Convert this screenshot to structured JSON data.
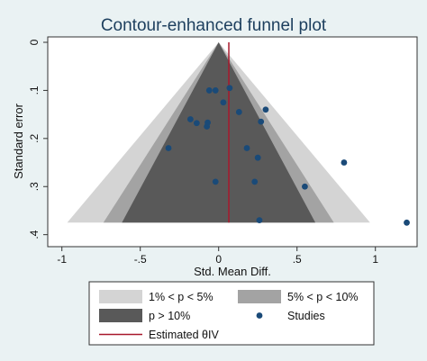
{
  "chart_data": {
    "type": "scatter",
    "title": "Contour-enhanced funnel plot",
    "xlabel": "Std. Mean Diff.",
    "ylabel": "Standard error",
    "xlim": [
      -1.05,
      1.22
    ],
    "ylim": [
      0,
      0.41
    ],
    "y_reversed": true,
    "x_ticks": [
      -1,
      -0.5,
      0,
      0.5,
      1
    ],
    "x_tick_labels": [
      "-1",
      "-.5",
      "0",
      ".5",
      "1"
    ],
    "y_ticks": [
      0,
      0.1,
      0.2,
      0.3,
      0.4
    ],
    "y_tick_labels": [
      "0",
      ".1",
      ".2",
      ".3",
      ".4"
    ],
    "pooled_estimate": 0.065,
    "se_max": 0.375,
    "contours": [
      {
        "name": "1% < p < 5%",
        "z": 2.576,
        "color": "#d4d4d4"
      },
      {
        "name": "5% < p < 10%",
        "z": 1.96,
        "color": "#a3a3a3"
      },
      {
        "name": "p > 10%",
        "z": 1.645,
        "color": "#595959"
      }
    ],
    "series": [
      {
        "name": "Studies",
        "color": "#1a4a78",
        "points": [
          {
            "x": 0.07,
            "y": 0.095
          },
          {
            "x": -0.06,
            "y": 0.1
          },
          {
            "x": -0.02,
            "y": 0.1
          },
          {
            "x": 0.3,
            "y": 0.14
          },
          {
            "x": 0.03,
            "y": 0.125
          },
          {
            "x": 0.13,
            "y": 0.145
          },
          {
            "x": 0.27,
            "y": 0.165
          },
          {
            "x": -0.18,
            "y": 0.16
          },
          {
            "x": -0.14,
            "y": 0.168
          },
          {
            "x": -0.07,
            "y": 0.167
          },
          {
            "x": -0.075,
            "y": 0.175
          },
          {
            "x": -0.32,
            "y": 0.22
          },
          {
            "x": 0.18,
            "y": 0.22
          },
          {
            "x": 0.25,
            "y": 0.24
          },
          {
            "x": 0.8,
            "y": 0.25
          },
          {
            "x": -0.02,
            "y": 0.29
          },
          {
            "x": 0.23,
            "y": 0.29
          },
          {
            "x": 0.55,
            "y": 0.3
          },
          {
            "x": 0.26,
            "y": 0.37
          },
          {
            "x": 1.2,
            "y": 0.375
          }
        ]
      }
    ],
    "estimate_line": {
      "name": "Estimated θIV",
      "color": "#a8182c"
    },
    "legend": {
      "position": "bottom",
      "items": [
        {
          "label": "1% < p < 5%",
          "kind": "area",
          "color": "#d4d4d4"
        },
        {
          "label": "5% < p < 10%",
          "kind": "area",
          "color": "#a3a3a3"
        },
        {
          "label": "p > 10%",
          "kind": "area",
          "color": "#595959"
        },
        {
          "label": "Studies",
          "kind": "marker",
          "color": "#1a4a78"
        },
        {
          "label": "Estimated θIV",
          "kind": "line",
          "color": "#a8182c"
        }
      ]
    }
  }
}
